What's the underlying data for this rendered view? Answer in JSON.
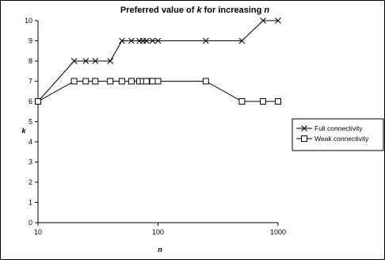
{
  "chart_data": {
    "type": "line",
    "title_prefix": "Preferred value of ",
    "title_k": "k",
    "title_mid": " for increasing ",
    "title_n": "n",
    "xlabel": "n",
    "ylabel": "k",
    "x_scale": "log",
    "xlim": [
      10,
      1000
    ],
    "ylim": [
      0,
      10
    ],
    "x_ticks": [
      10,
      100,
      1000
    ],
    "x_tick_labels": [
      "10",
      "100",
      "1000"
    ],
    "y_ticks": [
      0,
      1,
      2,
      3,
      4,
      5,
      6,
      7,
      8,
      9,
      10
    ],
    "y_tick_labels": [
      "0",
      "1",
      "2",
      "3",
      "4",
      "5",
      "6",
      "7",
      "8",
      "9",
      "10"
    ],
    "grid": false,
    "legend_position": "right",
    "series": [
      {
        "name": "Full connectivity",
        "marker": "x",
        "x": [
          10,
          20,
          25,
          30,
          40,
          50,
          60,
          70,
          75,
          80,
          90,
          100,
          250,
          500,
          750,
          1000
        ],
        "y": [
          6,
          8,
          8,
          8,
          8,
          9,
          9,
          9,
          9,
          9,
          9,
          9,
          9,
          9,
          10,
          10
        ]
      },
      {
        "name": "Weak connectivity",
        "marker": "square",
        "x": [
          10,
          20,
          25,
          30,
          40,
          50,
          60,
          70,
          75,
          80,
          90,
          100,
          250,
          500,
          750,
          1000
        ],
        "y": [
          6,
          7,
          7,
          7,
          7,
          7,
          7,
          7,
          7,
          7,
          7,
          7,
          7,
          6,
          6,
          6
        ]
      }
    ]
  }
}
